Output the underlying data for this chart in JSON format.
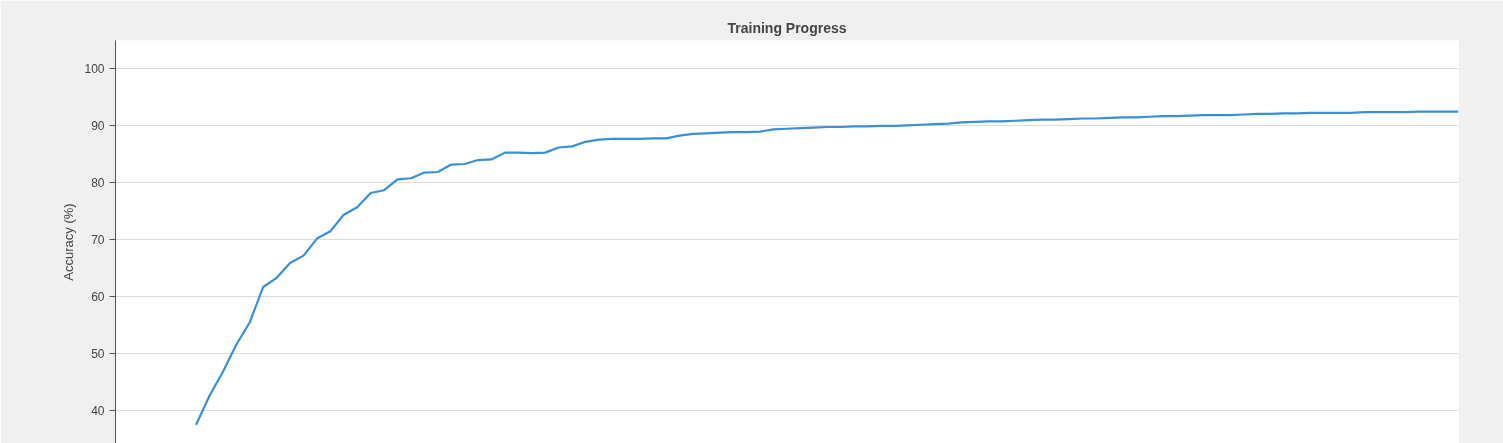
{
  "chart_data": {
    "type": "line",
    "title": "Training Progress",
    "ylabel": "Accuracy (%)",
    "categories": [
      null,
      null,
      null,
      null,
      null,
      null,
      null,
      null,
      null,
      null,
      null,
      null,
      null,
      null,
      null,
      null,
      null,
      null,
      null,
      null,
      null,
      null,
      null,
      null,
      null,
      null,
      null,
      null,
      null,
      null,
      null,
      null,
      null,
      null,
      null,
      null,
      null,
      null,
      null,
      null,
      null,
      null,
      null,
      null,
      null,
      null,
      null,
      null,
      null,
      null,
      null,
      null,
      null,
      null,
      null,
      null,
      null,
      null,
      null,
      null,
      null,
      null,
      null,
      null,
      null,
      null,
      null,
      null,
      null,
      null,
      null,
      null,
      null,
      null,
      null,
      null,
      null,
      null,
      null,
      null,
      null,
      null,
      null,
      null,
      null,
      null,
      null,
      null,
      null,
      null,
      null,
      null,
      null,
      null,
      null,
      null,
      null,
      null,
      null,
      null,
      null
    ],
    "series": [
      {
        "color": "#3a8fd9",
        "values": [
          null,
          null,
          null,
          null,
          null,
          null,
          37.5,
          42.6,
          46.8,
          51.6,
          55.5,
          61.7,
          63.3,
          65.9,
          67.2,
          70.2,
          71.5,
          74.4,
          75.7,
          78.2,
          78.7,
          80.6,
          80.8,
          81.8,
          81.9,
          83.2,
          83.3,
          84.0,
          84.1,
          85.3,
          85.3,
          85.2,
          85.3,
          86.2,
          86.4,
          87.2,
          87.6,
          87.7,
          87.7,
          87.7,
          87.8,
          87.8,
          88.3,
          88.6,
          88.7,
          88.8,
          88.9,
          88.9,
          89.0,
          89.4,
          89.5,
          89.6,
          89.7,
          89.8,
          89.8,
          89.9,
          89.9,
          90.0,
          90.0,
          90.1,
          90.2,
          90.3,
          90.4,
          90.6,
          90.7,
          90.8,
          90.8,
          90.9,
          91.0,
          91.1,
          91.1,
          91.2,
          91.3,
          91.3,
          91.4,
          91.5,
          91.5,
          91.6,
          91.7,
          91.7,
          91.8,
          91.9,
          91.9,
          91.9,
          92.0,
          92.1,
          92.1,
          92.2,
          92.2,
          92.3,
          92.3,
          92.3,
          92.3,
          92.4,
          92.4,
          92.4,
          92.4,
          92.5,
          92.5,
          92.5,
          92.5
        ]
      }
    ],
    "ylim": [
      34.2,
      105
    ],
    "yticks": [
      40,
      50,
      60,
      70,
      80,
      90,
      100
    ],
    "grid": "y",
    "tick_labels": "y",
    "line_style": "solid"
  }
}
